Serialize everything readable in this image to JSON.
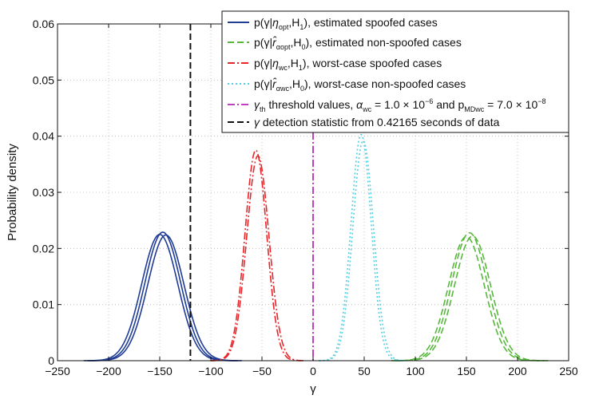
{
  "chart_data": {
    "type": "line",
    "title": "",
    "xlabel": "γ",
    "ylabel": "Probability density",
    "xlim": [
      -250,
      250
    ],
    "ylim": [
      0,
      0.06
    ],
    "grid": "dotted",
    "legend_position": "top-right",
    "x_ticks": [
      "−250",
      "−200",
      "−150",
      "−100",
      "−50",
      "0",
      "50",
      "100",
      "150",
      "200",
      "250"
    ],
    "y_ticks": [
      "0",
      "0.01",
      "0.02",
      "0.03",
      "0.04",
      "0.05",
      "0.06"
    ],
    "x_tick_values": [
      -250,
      -200,
      -150,
      -100,
      -50,
      0,
      50,
      100,
      150,
      200,
      250
    ],
    "y_tick_values": [
      0,
      0.01,
      0.02,
      0.03,
      0.04,
      0.05,
      0.06
    ],
    "series": [
      {
        "name": "estimated spoofed cases",
        "color": "#1f3c96",
        "style": "solid",
        "curves": [
          {
            "mean": -150,
            "peak": 0.0225,
            "sd": 17.7
          },
          {
            "mean": -147,
            "peak": 0.0229,
            "sd": 17.5
          },
          {
            "mean": -144,
            "peak": 0.0224,
            "sd": 17.7
          }
        ]
      },
      {
        "name": "estimated non-spoofed cases",
        "color": "#55b83a",
        "style": "dashed",
        "curves": [
          {
            "mean": 150,
            "peak": 0.0221,
            "sd": 17.5
          },
          {
            "mean": 153,
            "peak": 0.0228,
            "sd": 17.4
          },
          {
            "mean": 156,
            "peak": 0.0222,
            "sd": 17.6
          }
        ]
      },
      {
        "name": "worst-case spoofed cases",
        "color": "#e8262a",
        "style": "dashdot",
        "curves": [
          {
            "mean": -56,
            "peak": 0.0375,
            "sd": 10.6
          },
          {
            "mean": -54,
            "peak": 0.0365,
            "sd": 10.9
          }
        ]
      },
      {
        "name": "worst-case non-spoofed cases",
        "color": "#4fcfe0",
        "style": "dotted",
        "curves": [
          {
            "mean": 47,
            "peak": 0.0403,
            "sd": 9.9
          },
          {
            "mean": 49,
            "peak": 0.0392,
            "sd": 10.1
          }
        ]
      }
    ],
    "threshold": {
      "name": "threshold values",
      "x": 0,
      "color": "#c040c0",
      "style": "dashdot"
    },
    "detection_statistic": {
      "name": "detection statistic",
      "x": -120,
      "color": "#111111",
      "style": "dashed"
    },
    "legend": [
      {
        "math_left": "p(γ|",
        "math_sym": "η",
        "math_sub": "opt",
        "math_right": ",H",
        "math_right_sub": "1",
        "math_close": ")",
        "text": ", estimated spoofed cases"
      },
      {
        "math_left": "p(γ|",
        "math_sym": "r̂",
        "math_sub": "αopt",
        "math_right": ",H",
        "math_right_sub": "0",
        "math_close": ")",
        "text": ", estimated non-spoofed cases"
      },
      {
        "math_left": "p(γ|",
        "math_sym": "η",
        "math_sub": "wc",
        "math_right": ",H",
        "math_right_sub": "1",
        "math_close": ")",
        "text": ", worst-case spoofed cases"
      },
      {
        "math_left": "p(γ|",
        "math_sym": "r̂",
        "math_sub": "αwc",
        "math_right": ",H",
        "math_right_sub": "0",
        "math_close": ")",
        "text": ", worst-case non-spoofed cases"
      },
      {
        "sym": "γ",
        "sub": "th",
        "text": " threshold values, ",
        "alpha": "α",
        "alpha_sub": "wc",
        "alpha_val": " = 1.0 × 10",
        "alpha_exp": "−6",
        "and": " and p",
        "p_sub": "MDwc",
        "p_val": " = 7.0 × 10",
        "p_exp": "−8"
      },
      {
        "sym": "γ",
        "text": " detection statistic from 0.42165 seconds of data"
      }
    ]
  }
}
